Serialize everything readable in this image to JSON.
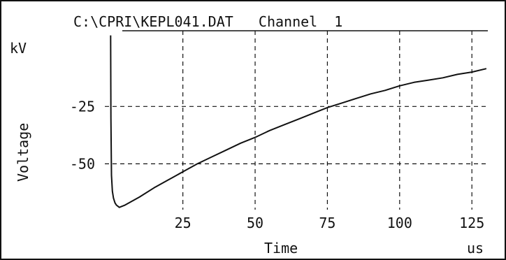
{
  "window_title": "C:\\CPRI\\KEPL041.DAT   Channel  1",
  "chart_data": {
    "type": "line",
    "title": "C:\\CPRI\\KEPL041.DAT   Channel  1",
    "xlabel": "Time",
    "xunit": "us",
    "ylabel": "Voltage",
    "yunit": "kV",
    "xlim": [
      -2,
      131
    ],
    "ylim": [
      -70,
      8
    ],
    "x_ticks": [
      25,
      50,
      75,
      100,
      125
    ],
    "y_ticks": [
      -25,
      -50
    ],
    "x_tick_labels": [
      "25",
      "50",
      "75",
      "100",
      "125"
    ],
    "y_tick_labels": [
      "-25",
      "-50"
    ],
    "grid": true,
    "grid_style": "dashed",
    "line_color": "#111111",
    "series": [
      {
        "x": [
          0,
          0.1,
          0.3,
          0.6,
          1,
          1.5,
          2,
          3,
          5,
          10,
          15,
          20,
          25,
          30,
          35,
          40,
          45,
          50,
          55,
          60,
          65,
          70,
          75,
          80,
          85,
          90,
          95,
          100,
          105,
          110,
          115,
          120,
          125,
          130
        ],
        "values": [
          6,
          -30,
          -55,
          -62,
          -65,
          -67,
          -68,
          -69,
          -68,
          -64.5,
          -60.5,
          -57,
          -53.5,
          -50,
          -47,
          -44,
          -41,
          -38.5,
          -35.5,
          -33,
          -30.5,
          -28,
          -25.5,
          -23.5,
          -21.5,
          -19.5,
          -18,
          -16,
          -14.5,
          -13.5,
          -12.5,
          -11,
          -10,
          -8.5
        ]
      }
    ]
  }
}
